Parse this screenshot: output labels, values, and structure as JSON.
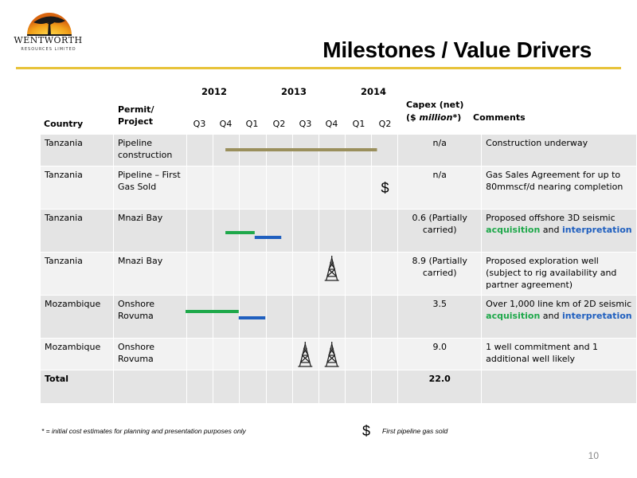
{
  "logo": {
    "name": "WENTWORTH",
    "sub": "RESOURCES LIMITED"
  },
  "title": "Milestones / Value Drivers",
  "headers": {
    "country": "Country",
    "permit": "Permit/ Project",
    "capex_line1": "Capex (net)",
    "capex_line2a": "($ ",
    "capex_line2b": "million*",
    "capex_line2c": ")",
    "comments": "Comments"
  },
  "years": [
    "2012",
    "2013",
    "2014"
  ],
  "quarters": [
    "Q3",
    "Q4",
    "Q1",
    "Q2",
    "Q3",
    "Q4",
    "Q1",
    "Q2"
  ],
  "rows": [
    {
      "country": "Tanzania",
      "project": "Pipeline construction",
      "capex": "n/a",
      "comment": "Construction underway"
    },
    {
      "country": "Tanzania",
      "project": "Pipeline – First Gas Sold",
      "capex": "n/a",
      "comment": "Gas Sales Agreement for up to 80mmscf/d nearing completion"
    },
    {
      "country": "Tanzania",
      "project": "Mnazi Bay",
      "capex": "0.6 (Partially carried)",
      "comment_parts": [
        "Proposed offshore 3D seismic ",
        "acquisition",
        " and ",
        "interpretation"
      ]
    },
    {
      "country": "Tanzania",
      "project": "Mnazi Bay",
      "capex": "8.9 (Partially carried)",
      "comment": "Proposed exploration well (subject to rig availability and partner agreement)"
    },
    {
      "country": "Mozambique",
      "project": "Onshore Rovuma",
      "capex": "3.5",
      "comment_parts": [
        "Over 1,000 line km of 2D seismic ",
        "acquisition",
        " and ",
        "interpretation"
      ]
    },
    {
      "country": "Mozambique",
      "project": "Onshore Rovuma",
      "capex": "9.0",
      "comment": "1 well commitment and 1 additional well likely"
    },
    {
      "country": "Total",
      "project": "",
      "capex": "22.0",
      "comment": ""
    }
  ],
  "gantt_items": [
    {
      "row": 0,
      "kind": "bar",
      "color": "#9a8f5c",
      "start_q": 1.5,
      "end_q": 7.2
    },
    {
      "row": 1,
      "kind": "dollar",
      "at_q": 7.5
    },
    {
      "row": 2,
      "kind": "bar",
      "color": "#1ea84a",
      "start_q": 1.5,
      "end_q": 2.6
    },
    {
      "row": 2,
      "kind": "bar",
      "color": "#1f5fbf",
      "start_q": 2.6,
      "end_q": 3.6
    },
    {
      "row": 3,
      "kind": "rig",
      "at_q": 5.5
    },
    {
      "row": 4,
      "kind": "bar",
      "color": "#1ea84a",
      "start_q": 0.0,
      "end_q": 2.0
    },
    {
      "row": 4,
      "kind": "bar",
      "color": "#1f5fbf",
      "start_q": 2.0,
      "end_q": 3.0
    },
    {
      "row": 5,
      "kind": "rig",
      "at_q": 4.5
    },
    {
      "row": 5,
      "kind": "rig",
      "at_q": 5.5
    }
  ],
  "colors": {
    "gold_rule": "#e8c33a",
    "green": "#1ea84a",
    "blue": "#1f5fbf",
    "pipeline": "#9a8f5c"
  },
  "footnote": "* = initial cost estimates for planning and presentation purposes only",
  "dollar_symbol": "$",
  "dollar_legend": "First pipeline gas sold",
  "page_number": "10"
}
